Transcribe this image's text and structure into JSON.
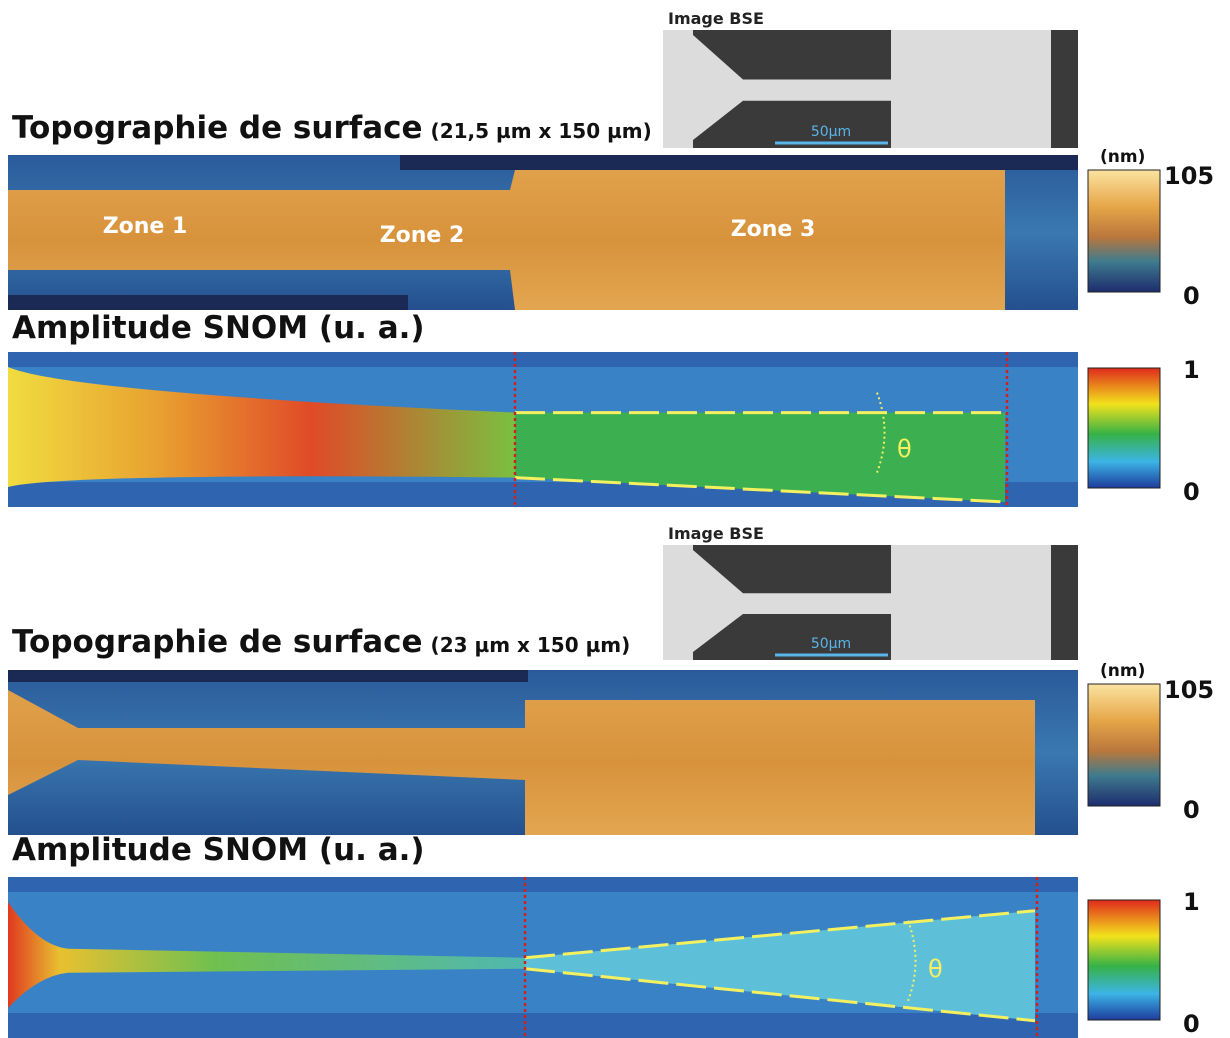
{
  "panels": [
    {
      "bse": {
        "label": "Image BSE",
        "scale_bar": "50µm"
      },
      "topography": {
        "title": "Topographie de surface",
        "size": "(21,5 µm x 150 µm)",
        "zones": [
          "Zone 1",
          "Zone 2",
          "Zone 3"
        ],
        "colorbar": {
          "unit": "(nm)",
          "max": 105,
          "min": 0
        }
      },
      "snom": {
        "title": "Amplitude SNOM (u. a.)",
        "angle": "θ",
        "colorbar": {
          "max": 1,
          "min": 0
        }
      }
    },
    {
      "bse": {
        "label": "Image BSE",
        "scale_bar": "50µm"
      },
      "topography": {
        "title": "Topographie de surface",
        "size": "(23 µm x 150 µm)",
        "colorbar": {
          "unit": "(nm)",
          "max": 105,
          "min": 0
        }
      },
      "snom": {
        "title": "Amplitude SNOM (u. a.)",
        "angle": "θ",
        "colorbar": {
          "max": 1,
          "min": 0
        }
      }
    }
  ]
}
